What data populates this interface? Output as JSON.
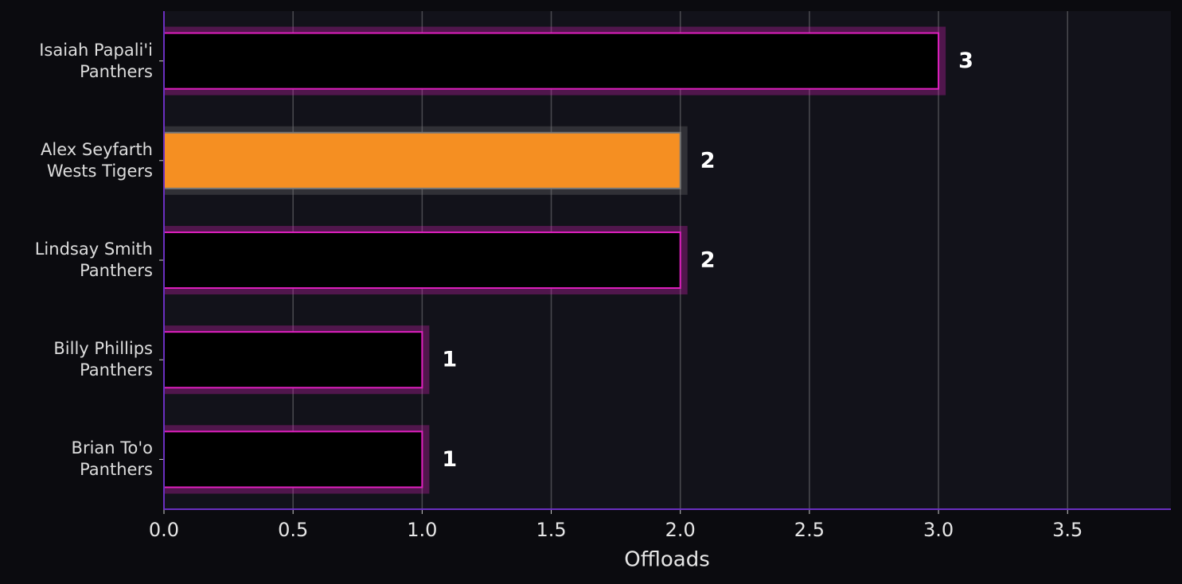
{
  "chart_data": {
    "type": "barh",
    "x_label": "Offloads",
    "categories": [
      "Isaiah Papali'i\nPanthers",
      "Alex Seyfarth\nWests Tigers",
      "Lindsay Smith\nPanthers",
      "Billy Phillips\nPanthers",
      "Brian To'o\nPanthers"
    ],
    "values": [
      3,
      2,
      2,
      1,
      1
    ],
    "colors": [
      "#000000",
      "#f58f22",
      "#000000",
      "#000000",
      "#000000"
    ],
    "edge_colors": [
      "#e020c0",
      "#777777",
      "#e020c0",
      "#e020c0",
      "#e020c0"
    ],
    "xlim": [
      0,
      3.9
    ],
    "xticks": [
      {
        "value": 0,
        "label": "0.0"
      },
      {
        "value": 0.5,
        "label": "0.5"
      },
      {
        "value": 1,
        "label": "1.0"
      },
      {
        "value": 1.5,
        "label": "1.5"
      },
      {
        "value": 2,
        "label": "2.0"
      },
      {
        "value": 2.5,
        "label": "2.5"
      },
      {
        "value": 3,
        "label": "3.0"
      },
      {
        "value": 3.5,
        "label": "3.5"
      }
    ],
    "grid": true
  }
}
